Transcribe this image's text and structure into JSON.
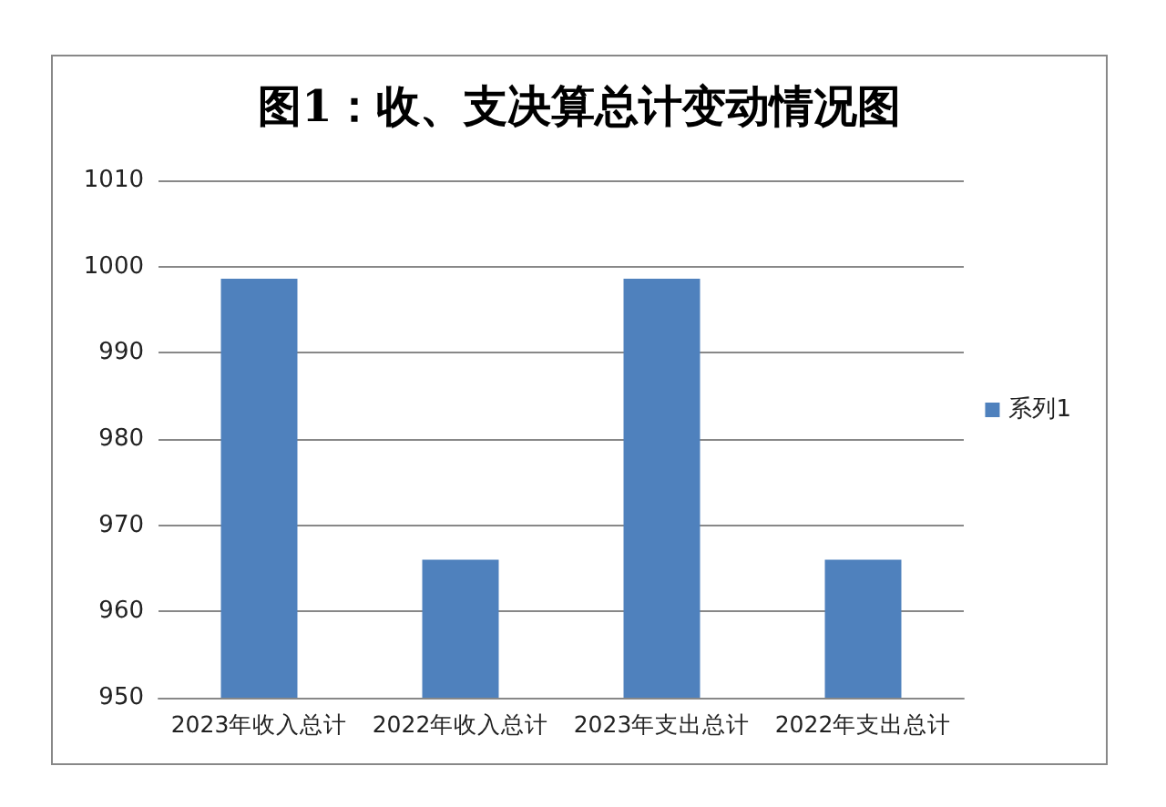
{
  "chart_data": {
    "type": "bar",
    "title": "图1：收、支决算总计变动情况图",
    "categories": [
      "2023年收入总计",
      "2022年收入总计",
      "2023年支出总计",
      "2022年支出总计"
    ],
    "series": [
      {
        "name": "系列1",
        "color": "#4f81bd",
        "values": [
          998.6,
          966,
          998.6,
          966
        ]
      }
    ],
    "ylim": [
      950,
      1010
    ],
    "yticks": [
      950,
      960,
      970,
      980,
      990,
      1000,
      1010
    ],
    "grid": "y",
    "legend": "right"
  }
}
